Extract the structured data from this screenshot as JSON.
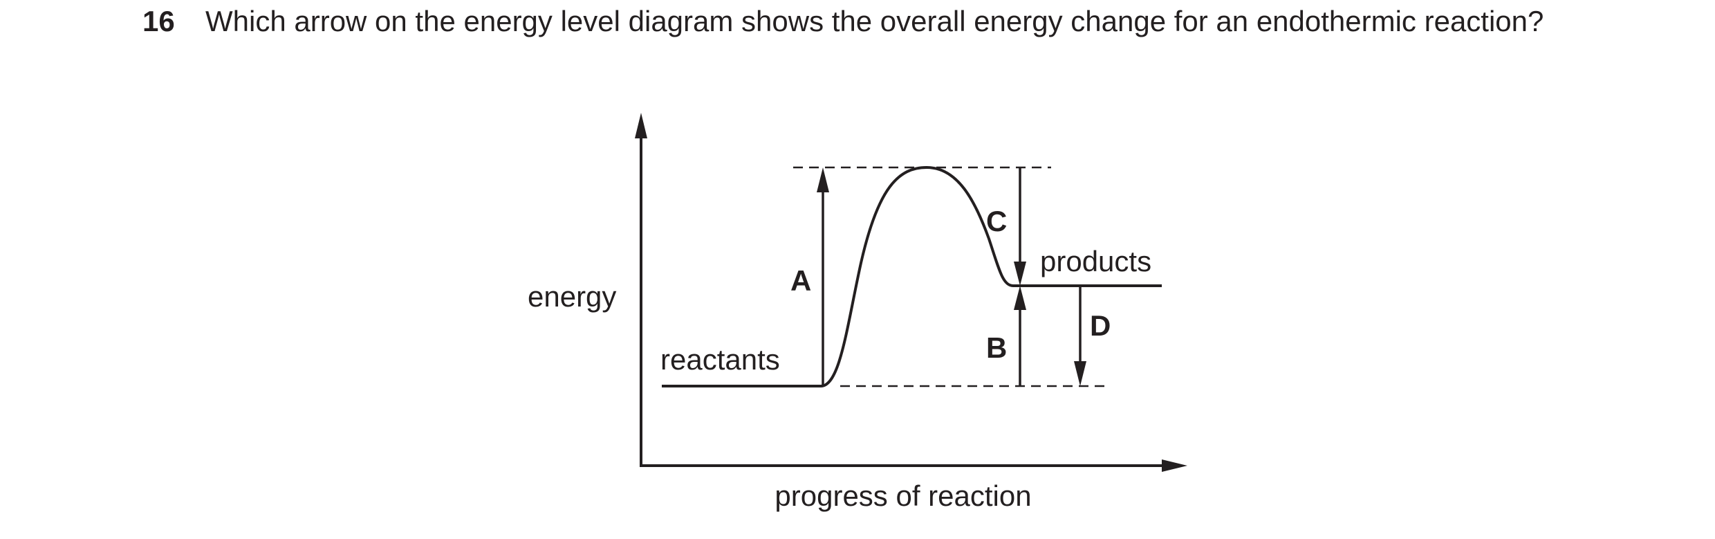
{
  "question": {
    "number": "16",
    "text": "Which arrow on the energy level diagram shows the overall energy change for an endothermic reaction?"
  },
  "diagram": {
    "y_axis_label": "energy",
    "x_axis_label": "progress of reaction",
    "reactants_label": "reactants",
    "products_label": "products",
    "arrow_labels": {
      "A": "A",
      "B": "B",
      "C": "C",
      "D": "D"
    },
    "stroke_color": "#231f20"
  }
}
